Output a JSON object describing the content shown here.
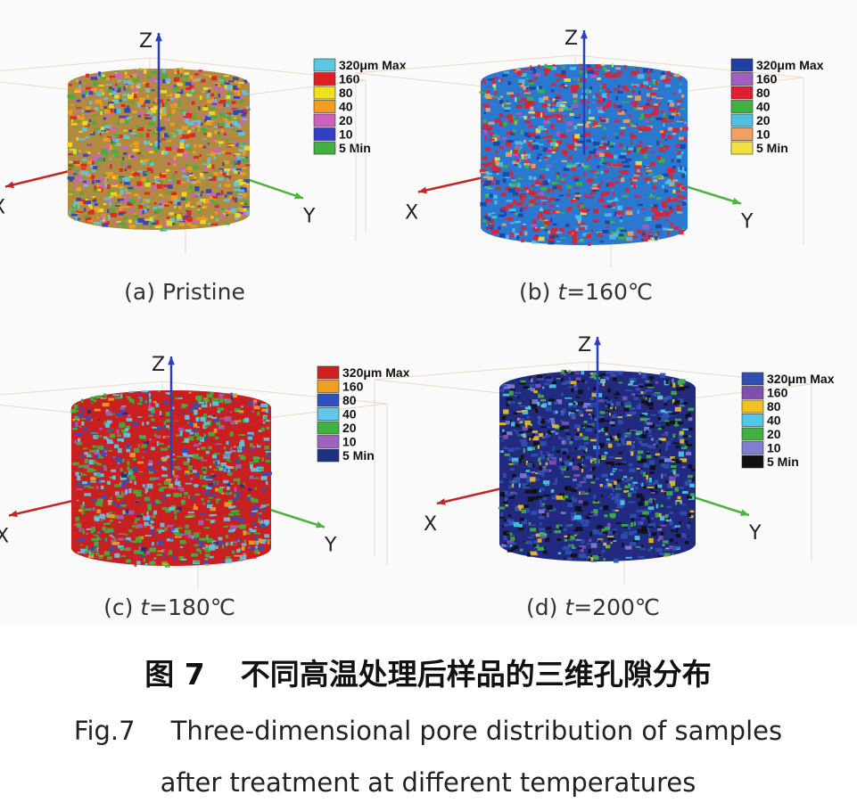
{
  "figure": {
    "panels": [
      {
        "axes": {
          "x": "X",
          "y": "Y",
          "z": "Z"
        },
        "legend": [
          {
            "label": "320μm Max",
            "color": "#5bc8e0"
          },
          {
            "label": "160",
            "color": "#e02020"
          },
          {
            "label": "80",
            "color": "#f0e020"
          },
          {
            "label": "40",
            "color": "#f0a020"
          },
          {
            "label": "20",
            "color": "#d060c0"
          },
          {
            "label": "10",
            "color": "#3040c0"
          },
          {
            "label": "5 Min",
            "color": "#40b040"
          }
        ],
        "caption": {
          "prefix": "(a)",
          "text": "Pristine"
        }
      },
      {
        "axes": {
          "x": "X",
          "y": "Y",
          "z": "Z"
        },
        "legend": [
          {
            "label": "320μm Max",
            "color": "#2040a0"
          },
          {
            "label": "160",
            "color": "#a060c0"
          },
          {
            "label": "80",
            "color": "#e02030"
          },
          {
            "label": "40",
            "color": "#40b040"
          },
          {
            "label": "20",
            "color": "#50c0e0"
          },
          {
            "label": "10",
            "color": "#f0a060"
          },
          {
            "label": "5 Min",
            "color": "#f0e040"
          }
        ],
        "caption": {
          "prefix": "(b)",
          "variable": "t",
          "text": "=160℃"
        }
      },
      {
        "axes": {
          "x": "X",
          "y": "Y",
          "z": "Z"
        },
        "legend": [
          {
            "label": "320μm Max",
            "color": "#d02020"
          },
          {
            "label": "160",
            "color": "#f0a020"
          },
          {
            "label": "80",
            "color": "#3050c0"
          },
          {
            "label": "40",
            "color": "#60c8e8"
          },
          {
            "label": "20",
            "color": "#40b040"
          },
          {
            "label": "10",
            "color": "#a060c0"
          },
          {
            "label": "5 Min",
            "color": "#203080"
          }
        ],
        "caption": {
          "prefix": "(c)",
          "variable": "t",
          "text": "=180℃"
        }
      },
      {
        "axes": {
          "x": "X",
          "y": "Y",
          "z": "Z"
        },
        "legend": [
          {
            "label": "320μm Max",
            "color": "#3050b0"
          },
          {
            "label": "160",
            "color": "#8050b0"
          },
          {
            "label": "80",
            "color": "#f0c020"
          },
          {
            "label": "40",
            "color": "#50c8e8"
          },
          {
            "label": "20",
            "color": "#40b040"
          },
          {
            "label": "10",
            "color": "#8080d0"
          },
          {
            "label": "5 Min",
            "color": "#101010"
          }
        ],
        "caption": {
          "prefix": "(d)",
          "variable": "t",
          "text": "=200℃"
        }
      }
    ],
    "caption_cn": {
      "label": "图 7",
      "text": "不同高温处理后样品的三维孔隙分布"
    },
    "caption_en": {
      "label": "Fig.7",
      "lines": [
        "Three-dimensional pore distribution of samples",
        "after treatment at different temperatures"
      ]
    }
  }
}
